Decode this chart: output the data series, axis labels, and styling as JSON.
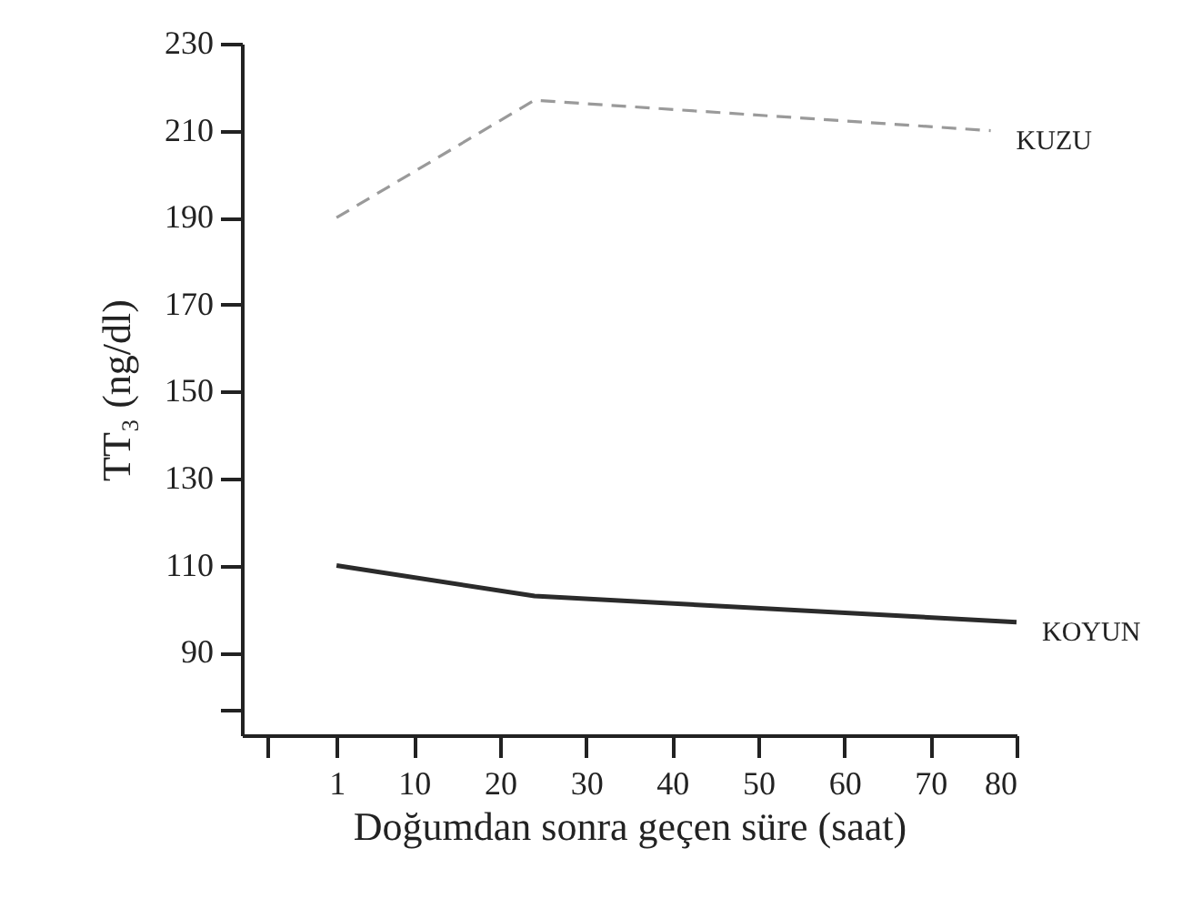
{
  "chart_data": {
    "type": "line",
    "xlabel": "Doğumdan sonra geçen süre (saat)",
    "ylabel": "TT₃ (ng/dl)",
    "xlim": [
      -10,
      80
    ],
    "xticks": [
      {
        "value": -7,
        "label": null
      },
      1,
      10,
      20,
      30,
      40,
      50,
      60,
      70,
      80
    ],
    "ylim": [
      71,
      230
    ],
    "yticks": [
      {
        "value": 77,
        "label": null
      },
      90,
      110,
      130,
      150,
      170,
      190,
      210,
      230
    ],
    "grid": false,
    "marker": "none",
    "series": [
      {
        "name": "KUZU",
        "color": "#9a9a9a",
        "line_style": "dashed",
        "x": [
          1,
          24,
          77
        ],
        "values": [
          190,
          217,
          210
        ]
      },
      {
        "name": "KOYUN",
        "color": "#2b2b2b",
        "line_style": "solid",
        "x": [
          1,
          24,
          80
        ],
        "values": [
          110,
          103,
          97
        ]
      }
    ]
  }
}
